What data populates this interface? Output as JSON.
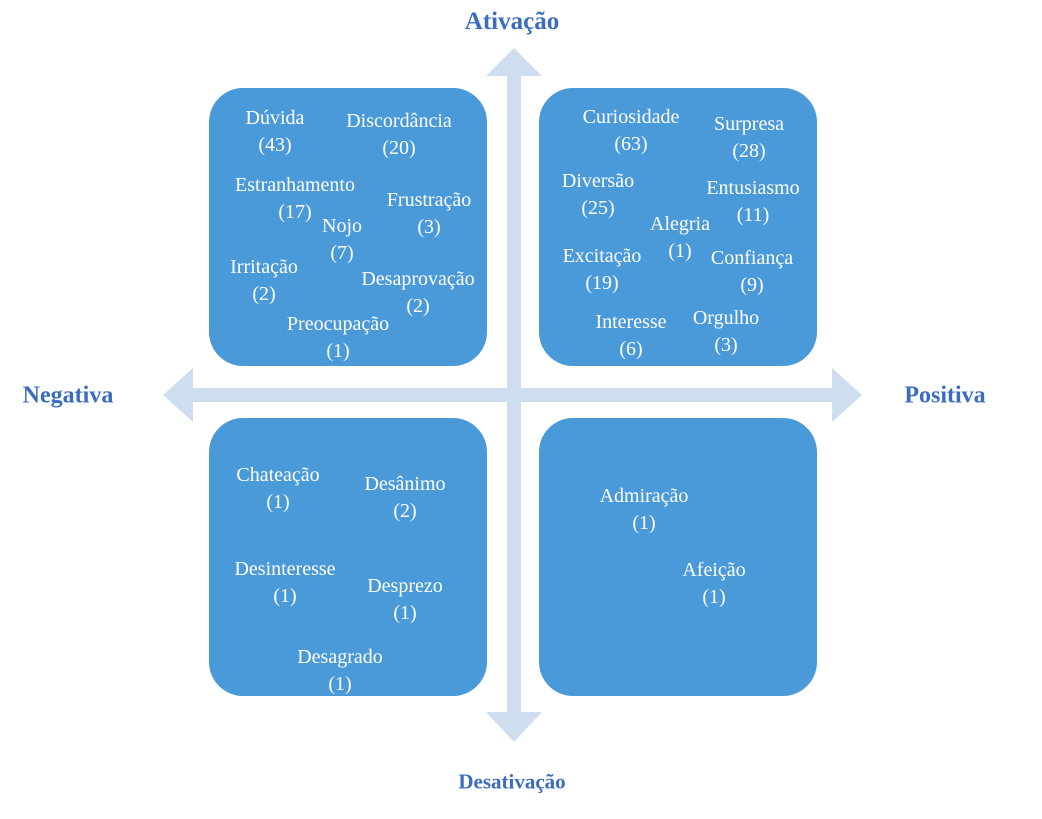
{
  "axes": {
    "top": "Ativação",
    "bottom": "Desativação",
    "left": "Negativa",
    "right": "Positiva"
  },
  "colors": {
    "box": "#4a9ad9",
    "arrow": "#cfdeef",
    "axis_label": "#3a6cbf",
    "item_text": "#ffffff"
  },
  "quadrants": [
    {
      "id": "negative-activation",
      "items": [
        {
          "name": "Dúvida",
          "count": "(43)"
        },
        {
          "name": "Discordância",
          "count": "(20)"
        },
        {
          "name": "Estranhamento",
          "count": "(17)"
        },
        {
          "name": "Nojo",
          "count": "(7)"
        },
        {
          "name": "Frustração",
          "count": "(3)"
        },
        {
          "name": "Irritação",
          "count": "(2)"
        },
        {
          "name": "Desaprovação",
          "count": "(2)"
        },
        {
          "name": "Preocupação",
          "count": "(1)"
        }
      ]
    },
    {
      "id": "positive-activation",
      "items": [
        {
          "name": "Curiosidade",
          "count": "(63)"
        },
        {
          "name": "Surpresa",
          "count": "(28)"
        },
        {
          "name": "Diversão",
          "count": "(25)"
        },
        {
          "name": "Entusiasmo",
          "count": "(11)"
        },
        {
          "name": "Alegria",
          "count": "(1)"
        },
        {
          "name": "Excitação",
          "count": "(19)"
        },
        {
          "name": "Confiança",
          "count": "(9)"
        },
        {
          "name": "Interesse",
          "count": "(6)"
        },
        {
          "name": "Orgulho",
          "count": "(3)"
        }
      ]
    },
    {
      "id": "negative-deactivation",
      "items": [
        {
          "name": "Chateação",
          "count": "(1)"
        },
        {
          "name": "Desânimo",
          "count": "(2)"
        },
        {
          "name": "Desinteresse",
          "count": "(1)"
        },
        {
          "name": "Desprezo",
          "count": "(1)"
        },
        {
          "name": "Desagrado",
          "count": "(1)"
        }
      ]
    },
    {
      "id": "positive-deactivation",
      "items": [
        {
          "name": "Admiração",
          "count": "(1)"
        },
        {
          "name": "Afeição",
          "count": "(1)"
        }
      ]
    }
  ]
}
